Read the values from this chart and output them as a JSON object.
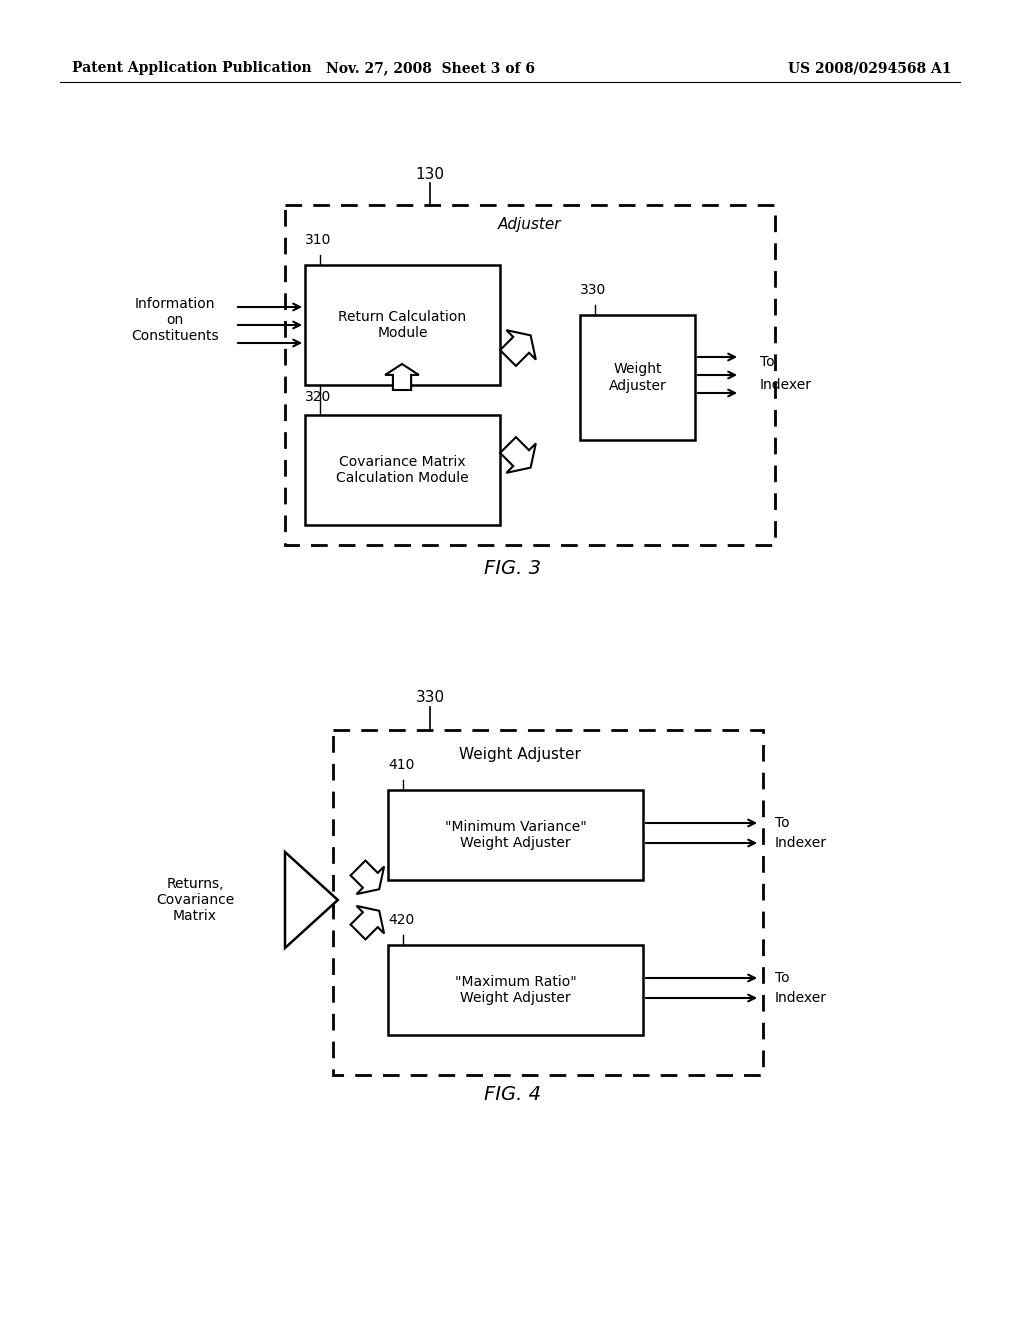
{
  "bg_color": "#ffffff",
  "header_left": "Patent Application Publication",
  "header_mid": "Nov. 27, 2008  Sheet 3 of 6",
  "header_right": "US 2008/0294568 A1",
  "fig3_label": "FIG. 3",
  "fig4_label": "FIG. 4"
}
